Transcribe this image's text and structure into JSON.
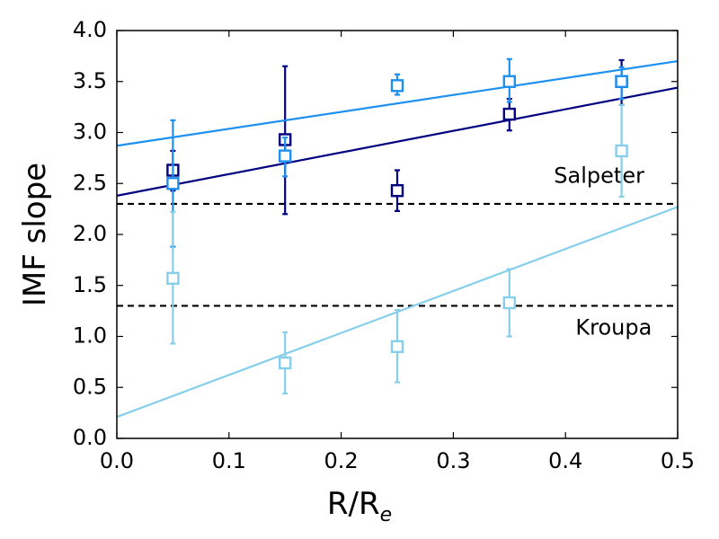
{
  "chart_data": {
    "type": "scatter",
    "xlabel": "R/R",
    "xlabel_subscript": "e",
    "ylabel": "IMF slope",
    "xlim": [
      0.0,
      0.5
    ],
    "ylim": [
      0.0,
      4.0
    ],
    "x_ticks": [
      "0.0",
      "0.1",
      "0.2",
      "0.3",
      "0.4",
      "0.5"
    ],
    "y_ticks": [
      "0.0",
      "0.5",
      "1.0",
      "1.5",
      "2.0",
      "2.5",
      "3.0",
      "3.5",
      "4.0"
    ],
    "grid": false,
    "reference_lines": [
      {
        "label": "Salpeter",
        "y": 2.3,
        "color": "#000000",
        "style": "dashed",
        "label_x": 0.43,
        "label_y": 2.57
      },
      {
        "label": "Kroupa",
        "y": 1.3,
        "color": "#000000",
        "style": "dashed",
        "label_x": 0.443,
        "label_y": 1.08
      }
    ],
    "series": [
      {
        "color": "#000080",
        "x": [
          0.05,
          0.15,
          0.25,
          0.35,
          0.45
        ],
        "y": [
          2.63,
          2.93,
          2.43,
          3.18,
          3.5
        ],
        "err_lo": [
          2.43,
          2.2,
          2.23,
          3.02,
          3.27
        ],
        "err_hi": [
          2.82,
          3.65,
          2.63,
          3.33,
          3.71
        ],
        "fit": {
          "x": [
            0.0,
            0.5
          ],
          "y": [
            2.38,
            3.44
          ]
        }
      },
      {
        "color": "#1e90ee",
        "x": [
          0.05,
          0.15,
          0.25,
          0.35,
          0.45
        ],
        "y": [
          2.5,
          2.77,
          3.46,
          3.5,
          3.5
        ],
        "err_lo": [
          1.88,
          2.57,
          3.37,
          3.3,
          3.33
        ],
        "err_hi": [
          3.12,
          2.95,
          3.57,
          3.72,
          3.64
        ],
        "fit": {
          "x": [
            0.0,
            0.5
          ],
          "y": [
            2.87,
            3.7
          ]
        }
      },
      {
        "color": "#87ceeb",
        "x": [
          0.05,
          0.15,
          0.25,
          0.35,
          0.45
        ],
        "y": [
          1.57,
          0.74,
          0.9,
          1.33,
          2.82
        ],
        "err_lo": [
          0.93,
          0.44,
          0.55,
          1.0,
          2.37
        ],
        "err_hi": [
          2.22,
          1.04,
          1.26,
          1.66,
          3.27
        ],
        "fit": {
          "x": [
            0.0,
            0.5
          ],
          "y": [
            0.21,
            2.27
          ]
        }
      }
    ]
  }
}
